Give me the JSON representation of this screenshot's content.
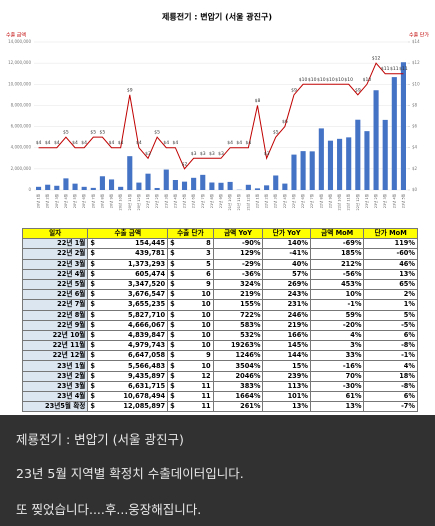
{
  "chart_data": {
    "type": "bar_line",
    "title": "제룡전기 : 변압기 (서울 광진구)",
    "categories": [
      "20년 1월",
      "20년 2월",
      "20년 3월",
      "20년 4월",
      "20년 5월",
      "20년 6월",
      "20년 7월",
      "20년 8월",
      "20년 9월",
      "20년 10월",
      "20년 11월",
      "20년 12월",
      "21년 1월",
      "21년 2월",
      "21년 3월",
      "21년 4월",
      "21년 5월",
      "21년 6월",
      "21년 7월",
      "21년 8월",
      "21년 9월",
      "21년 10월",
      "21년 11월",
      "21년 12월",
      "22년 1월",
      "22년 2월",
      "22년 3월",
      "22년 4월",
      "22년 5월",
      "22년 6월",
      "22년 7월",
      "22년 8월",
      "22년 9월",
      "22년 10월",
      "22년 11월",
      "22년 12월",
      "23년 1월",
      "23년 2월",
      "23년 3월",
      "23년 4월",
      "23년 5월"
    ],
    "series": [
      {
        "name": "수출 금액",
        "type": "bar",
        "color": "#4472c4",
        "values": [
          300000,
          500000,
          400000,
          1100000,
          600000,
          300000,
          200000,
          1300000,
          1000000,
          300000,
          3200000,
          700000,
          1544450,
          192000,
          1934000,
          946000,
          789500,
          1152500,
          1433400,
          709000,
          683200,
          765800,
          25700,
          493800,
          154445,
          439781,
          1373293,
          605474,
          3347520,
          3676547,
          3655235,
          5827710,
          4666067,
          4839847,
          4979743,
          6647058,
          5566483,
          9435897,
          6631715,
          10678494,
          12085897
        ]
      },
      {
        "name": "수출 단가",
        "type": "line",
        "axis": "y2",
        "color": "#c00000",
        "values": [
          4,
          4,
          4,
          5,
          4,
          4,
          5,
          5,
          4,
          4,
          9,
          4,
          3,
          5,
          4,
          4,
          2,
          3,
          3,
          3,
          3,
          4,
          4,
          4,
          8,
          3,
          5,
          6,
          9,
          10,
          10,
          10,
          10,
          10,
          10,
          9,
          10,
          12,
          11,
          11,
          11
        ],
        "value_labels": [
          "$4",
          "$4",
          "$4",
          "$5",
          "$4",
          "$4",
          "$5",
          "$5",
          "$4",
          "$4",
          "$9",
          "$4",
          "$3",
          "$5",
          "$4",
          "$4",
          "$2",
          "$3",
          "$3",
          "$3",
          "$3",
          "$4",
          "$4",
          "$4",
          "$8",
          "$3",
          "$5",
          "$6",
          "$9",
          "$10",
          "$10",
          "$10",
          "$10",
          "$10",
          "$10",
          "$9",
          "$10",
          "$12",
          "$11",
          "$11",
          "$11"
        ]
      }
    ],
    "ylim": [
      0,
      14000000
    ],
    "yticks": [
      0,
      {
        "value": 2000000,
        "label": "2,000,000"
      },
      {
        "value": 4000000,
        "label": "4,000,000"
      },
      {
        "value": 6000000,
        "label": "6,000,000"
      },
      {
        "value": 8000000,
        "label": "8,000,000"
      },
      {
        "value": 10000000,
        "label": "10,000,000"
      },
      {
        "value": 12000000,
        "label": "12,000,000"
      },
      {
        "value": 14000000,
        "label": "14,000,000"
      }
    ],
    "y2lim": [
      0,
      14
    ],
    "y2ticks": [
      {
        "value": 0,
        "label": "$0"
      },
      {
        "value": 2,
        "label": "$2"
      },
      {
        "value": 4,
        "label": "$4"
      },
      {
        "value": 6,
        "label": "$6"
      },
      {
        "value": 8,
        "label": "$8"
      },
      {
        "value": 10,
        "label": "$10"
      },
      {
        "value": 12,
        "label": "$12"
      },
      {
        "value": 14,
        "label": "$14"
      }
    ],
    "grid": true
  },
  "table": {
    "header": [
      "일자",
      "수출 금액",
      "수출 단가",
      "금액 YoY",
      "단가 YoY",
      "금액 MoM",
      "단가 MoM"
    ],
    "rows": [
      [
        "22년 1월",
        "$",
        "154,445",
        "$",
        "8",
        "-90%",
        "140%",
        "-69%",
        "119%"
      ],
      [
        "22년 2월",
        "$",
        "439,781",
        "$",
        "3",
        "129%",
        "-41%",
        "185%",
        "-60%"
      ],
      [
        "22년 3월",
        "$",
        "1,373,293",
        "$",
        "5",
        "-29%",
        "40%",
        "212%",
        "46%"
      ],
      [
        "22년 4월",
        "$",
        "605,474",
        "$",
        "6",
        "-36%",
        "57%",
        "-56%",
        "13%"
      ],
      [
        "22년 5월",
        "$",
        "3,347,520",
        "$",
        "9",
        "324%",
        "269%",
        "453%",
        "65%"
      ],
      [
        "22년 6월",
        "$",
        "3,676,547",
        "$",
        "10",
        "219%",
        "243%",
        "10%",
        "2%"
      ],
      [
        "22년 7월",
        "$",
        "3,655,235",
        "$",
        "10",
        "155%",
        "231%",
        "-1%",
        "1%"
      ],
      [
        "22년 8월",
        "$",
        "5,827,710",
        "$",
        "10",
        "722%",
        "246%",
        "59%",
        "5%"
      ],
      [
        "22년 9월",
        "$",
        "4,666,067",
        "$",
        "10",
        "583%",
        "219%",
        "-20%",
        "-5%"
      ],
      [
        "22년 10월",
        "$",
        "4,839,847",
        "$",
        "10",
        "532%",
        "166%",
        "4%",
        "6%"
      ],
      [
        "22년 11월",
        "$",
        "4,979,743",
        "$",
        "10",
        "19263%",
        "145%",
        "3%",
        "-8%"
      ],
      [
        "22년 12월",
        "$",
        "6,647,058",
        "$",
        "9",
        "1246%",
        "144%",
        "33%",
        "-1%"
      ],
      [
        "23년 1월",
        "$",
        "5,566,483",
        "$",
        "10",
        "3504%",
        "15%",
        "-16%",
        "4%"
      ],
      [
        "23년 2월",
        "$",
        "9,435,897",
        "$",
        "12",
        "2046%",
        "239%",
        "70%",
        "18%"
      ],
      [
        "23년 3월",
        "$",
        "6,631,715",
        "$",
        "11",
        "383%",
        "113%",
        "-30%",
        "-8%"
      ],
      [
        "23년 4월",
        "$",
        "10,678,494",
        "$",
        "11",
        "1664%",
        "101%",
        "61%",
        "6%"
      ],
      [
        "23년5월 확정",
        "$",
        "12,085,897",
        "$",
        "11",
        "261%",
        "13%",
        "13%",
        "-7%"
      ]
    ]
  },
  "post": {
    "lines": [
      "제룡전기 : 변압기 (서울 광진구)",
      "23년 5월 지역별 확정치 수출데이터입니다.",
      "또 찢었습니다....후...웅장해집니다."
    ]
  }
}
